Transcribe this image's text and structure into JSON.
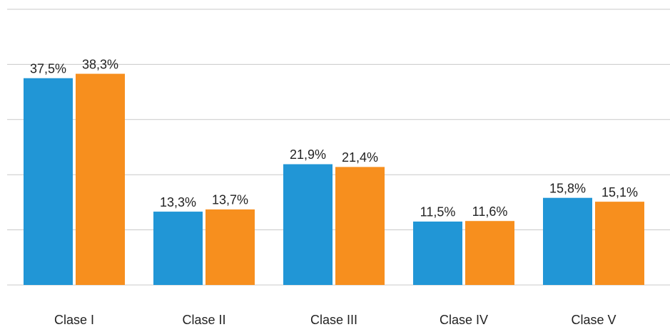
{
  "chart_data": {
    "type": "bar",
    "categories": [
      "Clase I",
      "Clase II",
      "Clase III",
      "Clase IV",
      "Clase V"
    ],
    "series": [
      {
        "color": "#2196d6",
        "values": [
          37.5,
          13.3,
          21.9,
          11.5,
          15.8
        ],
        "value_labels": [
          "37,5%",
          "13,3%",
          "21,9%",
          "11,5%",
          "15,8%"
        ]
      },
      {
        "color": "#f78f1e",
        "values": [
          38.3,
          13.7,
          21.4,
          11.6,
          15.1
        ],
        "value_labels": [
          "38,3%",
          "13,7%",
          "21,4%",
          "11,6%",
          "15,1%"
        ]
      }
    ],
    "ylim": [
      0,
      50
    ],
    "yticks": [
      0,
      10,
      20,
      30,
      40,
      50
    ],
    "grid": true
  }
}
